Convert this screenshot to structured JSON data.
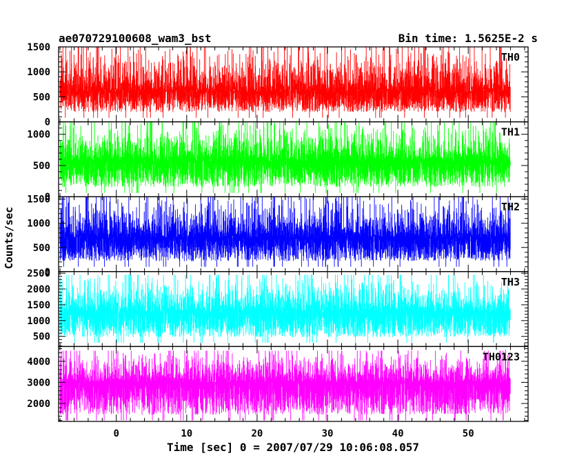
{
  "chart_data": {
    "type": "line",
    "title_left": "ae070729100608_wam3_bst",
    "title_right": "Bin time: 1.5625E-2 s",
    "xlabel": "Time [sec] 0 = 2007/07/29 10:06:08.057",
    "ylabel": "Counts/sec",
    "xlim": [
      -8.2,
      58.5
    ],
    "x_data_range": [
      -8.0,
      56.0
    ],
    "x_ticks": [
      0,
      10,
      20,
      30,
      40,
      50
    ],
    "panels": [
      {
        "name": "TH0",
        "color": "#ff0000",
        "ylim": [
          0,
          1500
        ],
        "y_ticks": [
          0,
          500,
          1000,
          1500
        ],
        "mean": 600,
        "min": 80,
        "max": 1500
      },
      {
        "name": "TH1",
        "color": "#00ff00",
        "ylim": [
          0,
          1200
        ],
        "y_ticks": [
          0,
          500,
          1000
        ],
        "mean": 560,
        "min": 60,
        "max": 1200
      },
      {
        "name": "TH2",
        "color": "#0000ff",
        "ylim": [
          0,
          1550
        ],
        "y_ticks": [
          0,
          500,
          1000,
          1500
        ],
        "mean": 700,
        "min": 100,
        "max": 1550
      },
      {
        "name": "TH3",
        "color": "#00ffff",
        "ylim": [
          180,
          2550
        ],
        "y_ticks": [
          500,
          1000,
          1500,
          2000,
          2500
        ],
        "mean": 1250,
        "min": 300,
        "max": 2450
      },
      {
        "name": "TH0123",
        "color": "#ff00ff",
        "ylim": [
          1150,
          4700
        ],
        "y_ticks": [
          2000,
          3000,
          4000
        ],
        "mean": 3000,
        "min": 1200,
        "max": 4500
      }
    ]
  }
}
